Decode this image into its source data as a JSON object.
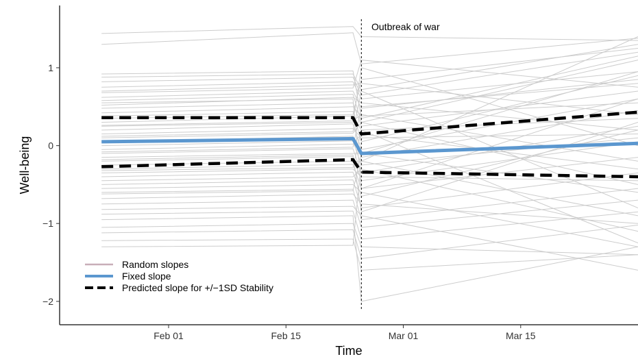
{
  "chart_data": {
    "type": "line",
    "xlabel": "Time",
    "ylabel": "Well-being",
    "x_ticks": [
      {
        "label": "Feb 01",
        "day": 32
      },
      {
        "label": "Feb 15",
        "day": 46
      },
      {
        "label": "Mar 01",
        "day": 60
      },
      {
        "label": "Mar 15",
        "day": 74
      }
    ],
    "y_ticks": [
      {
        "label": "1",
        "value": 1
      },
      {
        "label": "0",
        "value": 0
      },
      {
        "label": "−1",
        "value": -1
      },
      {
        "label": "−2",
        "value": -2
      }
    ],
    "xlim": [
      "2022-01-19",
      "2022-03-29"
    ],
    "ylim": [
      -2.3,
      1.8
    ],
    "event": {
      "label": "Outbreak of war",
      "date": "2022-02-24"
    },
    "legend": {
      "position": "bottom-left",
      "items": [
        {
          "label": "Random slopes",
          "color": "#c8aeb8",
          "style": "solid"
        },
        {
          "label": "Fixed slope",
          "color": "#5b97cf",
          "style": "solid"
        },
        {
          "label": "Predicted slope for +/−1SD Stability",
          "color": "#000000",
          "style": "dashed"
        }
      ]
    },
    "colors": {
      "random": "#cccccc",
      "fixed": "#5b97cf",
      "predicted": "#000000",
      "event_line": "#000000"
    },
    "series": [
      {
        "name": "Fixed slope",
        "segments": [
          {
            "x": [
              "2022-01-24",
              "2022-02-23"
            ],
            "y": [
              0.05,
              0.09
            ]
          },
          {
            "x": [
              "2022-02-24",
              "2022-03-29"
            ],
            "y": [
              -0.1,
              0.03
            ]
          }
        ]
      },
      {
        "name": "Predicted slope for +/−1SD Stability (+1SD)",
        "segments": [
          {
            "x": [
              "2022-01-24",
              "2022-02-23"
            ],
            "y": [
              0.36,
              0.36
            ]
          },
          {
            "x": [
              "2022-02-24",
              "2022-03-29"
            ],
            "y": [
              0.15,
              0.43
            ]
          }
        ]
      },
      {
        "name": "Predicted slope for +/−1SD Stability (−1SD)",
        "segments": [
          {
            "x": [
              "2022-01-24",
              "2022-02-23"
            ],
            "y": [
              -0.27,
              -0.18
            ]
          },
          {
            "x": [
              "2022-02-24",
              "2022-03-29"
            ],
            "y": [
              -0.34,
              -0.4
            ]
          }
        ]
      }
    ],
    "random_slopes": [
      [
        1.44,
        1.53,
        1.4,
        1.35
      ],
      [
        1.3,
        1.45,
        1.05,
        1.38
      ],
      [
        0.88,
        0.92,
        0.72,
        1.3
      ],
      [
        0.82,
        0.88,
        0.65,
        1.2
      ],
      [
        0.75,
        0.82,
        0.6,
        0.95
      ],
      [
        0.7,
        0.78,
        0.8,
        0.4
      ],
      [
        0.62,
        0.7,
        0.48,
        0.85
      ],
      [
        0.58,
        0.66,
        0.3,
        1.1
      ],
      [
        0.52,
        0.62,
        0.55,
        0.2
      ],
      [
        0.48,
        0.55,
        0.25,
        0.7
      ],
      [
        0.42,
        0.5,
        0.38,
        0.55
      ],
      [
        0.38,
        0.44,
        0.05,
        0.9
      ],
      [
        0.3,
        0.38,
        0.2,
        0.35
      ],
      [
        0.26,
        0.32,
        0.4,
        -0.2
      ],
      [
        0.2,
        0.28,
        -0.05,
        0.6
      ],
      [
        0.15,
        0.22,
        0.1,
        0.15
      ],
      [
        0.1,
        0.16,
        0.3,
        -0.5
      ],
      [
        0.05,
        0.12,
        -0.15,
        0.45
      ],
      [
        0.0,
        0.06,
        -0.25,
        0.1
      ],
      [
        -0.05,
        0.02,
        0.15,
        -0.3
      ],
      [
        -0.1,
        -0.04,
        -0.35,
        0.25
      ],
      [
        -0.15,
        -0.1,
        -0.1,
        -0.6
      ],
      [
        -0.2,
        -0.14,
        -0.45,
        0.05
      ],
      [
        -0.25,
        -0.2,
        -0.2,
        -0.9
      ],
      [
        -0.3,
        -0.24,
        -0.55,
        -0.15
      ],
      [
        -0.35,
        -0.3,
        -0.4,
        -0.45
      ],
      [
        -0.4,
        -0.34,
        -0.65,
        0.2
      ],
      [
        -0.45,
        -0.4,
        -0.3,
        -1.1
      ],
      [
        -0.5,
        -0.44,
        -0.8,
        -0.35
      ],
      [
        -0.55,
        -0.5,
        -0.6,
        -1.3
      ],
      [
        -0.6,
        -0.56,
        -0.95,
        -0.55
      ],
      [
        -0.68,
        -0.62,
        -0.75,
        -1.0
      ],
      [
        -0.75,
        -0.7,
        -1.05,
        -0.7
      ],
      [
        -0.82,
        -0.78,
        -0.9,
        -1.6
      ],
      [
        -0.88,
        -0.84,
        -1.2,
        -0.85
      ],
      [
        -0.95,
        -0.9,
        -2.0,
        -1.3
      ],
      [
        -1.05,
        -1.0,
        -1.3,
        -1.4
      ],
      [
        -1.12,
        -1.08,
        -1.45,
        -1.02
      ],
      [
        -1.22,
        -1.2,
        -1.6,
        -1.4
      ],
      [
        -1.3,
        -1.28,
        -0.2,
        1.4
      ],
      [
        0.68,
        0.74,
        1.1,
        0.75
      ],
      [
        0.35,
        0.4,
        0.85,
        1.25
      ],
      [
        -0.08,
        -0.02,
        0.5,
        0.8
      ],
      [
        -0.32,
        -0.28,
        0.2,
        -1.25
      ],
      [
        0.55,
        0.6,
        -0.55,
        0.6
      ],
      [
        0.12,
        0.18,
        0.7,
        -0.8
      ],
      [
        -0.62,
        -0.58,
        -0.1,
        0.95
      ],
      [
        0.92,
        0.96,
        0.35,
        1.15
      ],
      [
        -0.18,
        -0.12,
        -0.85,
        0.3
      ],
      [
        0.25,
        0.3,
        1.0,
        0.0
      ]
    ]
  }
}
